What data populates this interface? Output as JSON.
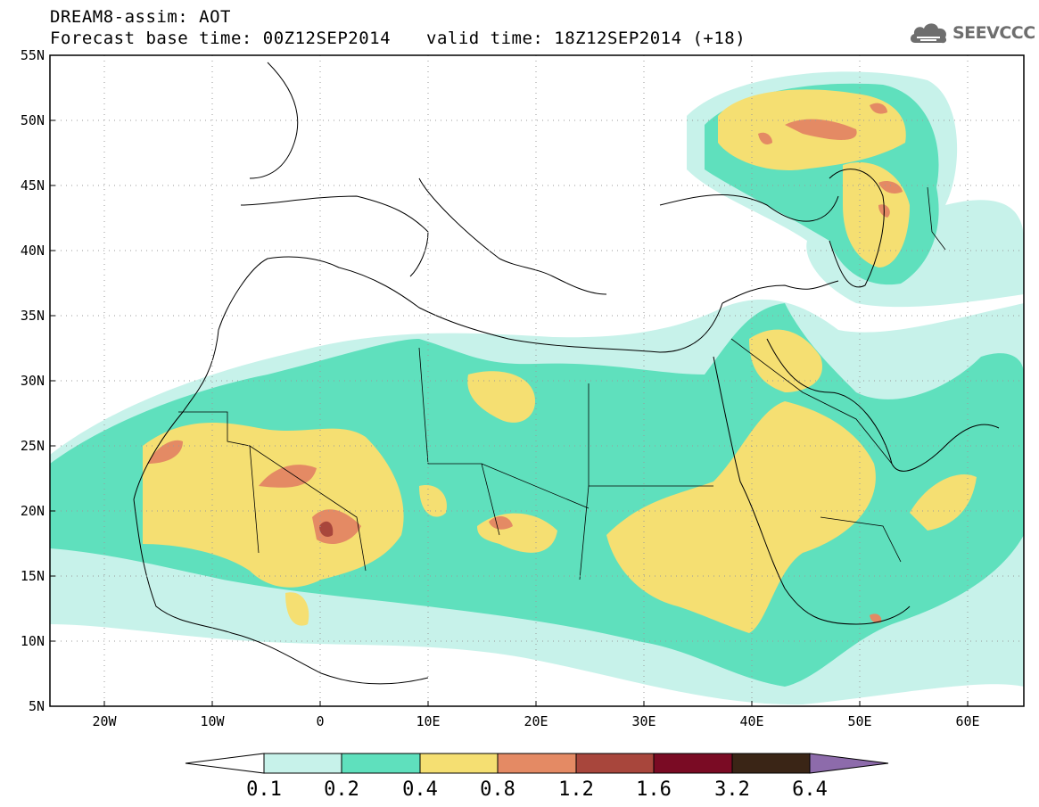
{
  "header": {
    "line1": "DREAM8-assim: AOT",
    "line2_left": "Forecast base time: 00Z12SEP2014",
    "line2_right": "valid time: 18Z12SEP2014 (+18)"
  },
  "logo": {
    "text": "SEEVCCC",
    "icon": "cloud-icon",
    "color": "#6e6e6e"
  },
  "map": {
    "lon_range": [
      -25,
      65
    ],
    "lat_range": [
      5,
      55
    ],
    "lat_ticks": [
      "55N",
      "50N",
      "45N",
      "40N",
      "35N",
      "30N",
      "25N",
      "20N",
      "15N",
      "10N",
      "5N"
    ],
    "lon_ticks": [
      "20W",
      "10W",
      "0",
      "10E",
      "20E",
      "30E",
      "40E",
      "50E",
      "60E"
    ],
    "grid": "dotted"
  },
  "colorbar": {
    "labels": [
      "0.1",
      "0.2",
      "0.4",
      "0.8",
      "1.2",
      "1.6",
      "3.2",
      "6.4"
    ],
    "colors": [
      "#c7f2ea",
      "#5fe0bd",
      "#f5df72",
      "#e48a64",
      "#a8463c",
      "#7a0b24",
      "#3a2516",
      "#8d6bab"
    ]
  }
}
